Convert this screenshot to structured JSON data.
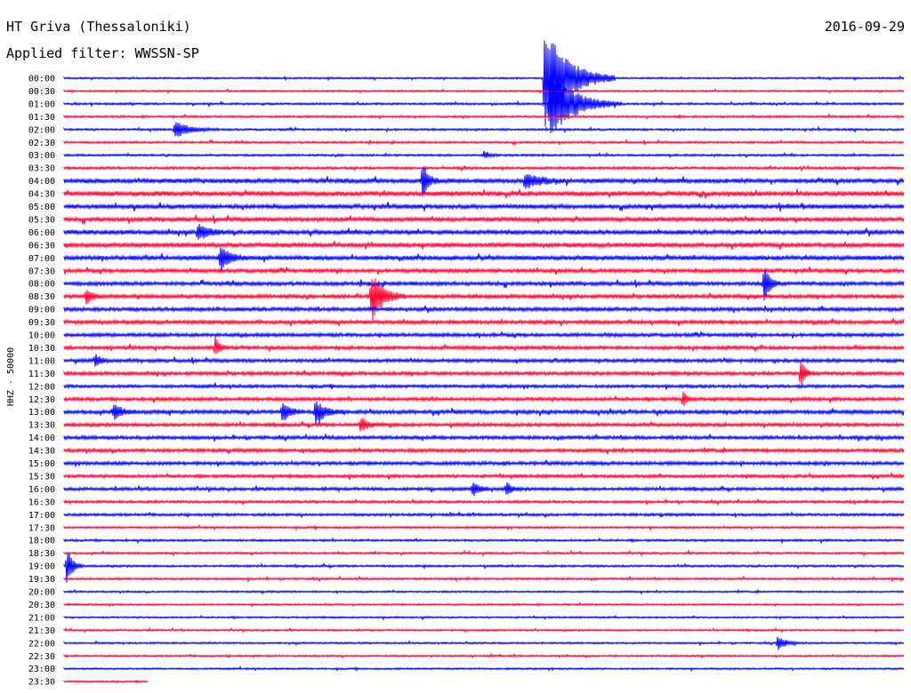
{
  "header": {
    "station": "HT Griva (Thessaloniki)",
    "date": "2016-09-29",
    "filter": "Applied filter: WWSSN-SP"
  },
  "chart_data": {
    "type": "line",
    "ylabel": "HHZ - 50000",
    "xlim_minutes": [
      0,
      30
    ],
    "ylim_rows": [
      0,
      47
    ],
    "grid": false,
    "series_colors": [
      "#0000ff",
      "#ff0033"
    ],
    "row_labels": [
      "00:00",
      "00:30",
      "01:00",
      "01:30",
      "02:00",
      "02:30",
      "03:00",
      "03:30",
      "04:00",
      "04:30",
      "05:00",
      "05:30",
      "06:00",
      "06:30",
      "07:00",
      "07:30",
      "08:00",
      "08:30",
      "09:00",
      "09:30",
      "10:00",
      "10:30",
      "11:00",
      "11:30",
      "12:00",
      "12:30",
      "13:00",
      "13:30",
      "14:00",
      "14:30",
      "15:00",
      "15:30",
      "16:00",
      "16:30",
      "17:00",
      "17:30",
      "18:00",
      "18:30",
      "19:00",
      "19:30",
      "20:00",
      "20:30",
      "21:00",
      "21:30",
      "22:00",
      "22:30",
      "23:00",
      "23:30"
    ],
    "row_noise": [
      1,
      1,
      1.2,
      1.2,
      1.2,
      1.2,
      1.2,
      1.5,
      2.5,
      2.8,
      2.5,
      2.5,
      2.5,
      2.5,
      2.5,
      2.2,
      2.2,
      2.2,
      2.2,
      2.2,
      2,
      2,
      2,
      2,
      1.8,
      2,
      2.2,
      2,
      2,
      2,
      2,
      1.8,
      1.8,
      1.5,
      1.5,
      1.2,
      1.2,
      1.2,
      1.2,
      1.2,
      1,
      1,
      1,
      1,
      1,
      1,
      1,
      1
    ],
    "row_end_minute": [
      30,
      30,
      30,
      30,
      30,
      30,
      30,
      30,
      30,
      30,
      30,
      30,
      30,
      30,
      30,
      30,
      30,
      30,
      30,
      30,
      30,
      30,
      30,
      30,
      30,
      30,
      30,
      30,
      30,
      30,
      30,
      30,
      30,
      30,
      30,
      30,
      30,
      30,
      30,
      30,
      30,
      30,
      30,
      30,
      30,
      30,
      30,
      3
    ],
    "events": [
      {
        "row": 0,
        "minute": 17.2,
        "amplitude": 60,
        "duration": 2.5
      },
      {
        "row": 2,
        "minute": 17.4,
        "amplitude": 40,
        "duration": 2.5
      },
      {
        "row": 4,
        "minute": 4.0,
        "amplitude": 9,
        "duration": 1.5
      },
      {
        "row": 6,
        "minute": 15.0,
        "amplitude": 4,
        "duration": 0.6
      },
      {
        "row": 8,
        "minute": 12.8,
        "amplitude": 22,
        "duration": 0.6
      },
      {
        "row": 8,
        "minute": 16.5,
        "amplitude": 9,
        "duration": 1.5
      },
      {
        "row": 12,
        "minute": 4.8,
        "amplitude": 10,
        "duration": 1.0
      },
      {
        "row": 14,
        "minute": 5.6,
        "amplitude": 14,
        "duration": 1.0
      },
      {
        "row": 16,
        "minute": 25.0,
        "amplitude": 22,
        "duration": 0.6
      },
      {
        "row": 17,
        "minute": 0.8,
        "amplitude": 10,
        "duration": 0.6
      },
      {
        "row": 17,
        "minute": 11.0,
        "amplitude": 28,
        "duration": 1.2
      },
      {
        "row": 21,
        "minute": 5.4,
        "amplitude": 12,
        "duration": 0.5
      },
      {
        "row": 22,
        "minute": 1.1,
        "amplitude": 8,
        "duration": 0.5
      },
      {
        "row": 23,
        "minute": 26.3,
        "amplitude": 18,
        "duration": 0.5
      },
      {
        "row": 25,
        "minute": 22.1,
        "amplitude": 10,
        "duration": 0.4
      },
      {
        "row": 26,
        "minute": 1.8,
        "amplitude": 9,
        "duration": 0.8
      },
      {
        "row": 26,
        "minute": 7.8,
        "amplitude": 12,
        "duration": 0.8
      },
      {
        "row": 26,
        "minute": 9.0,
        "amplitude": 14,
        "duration": 1.0
      },
      {
        "row": 27,
        "minute": 10.6,
        "amplitude": 8,
        "duration": 0.8
      },
      {
        "row": 32,
        "minute": 14.6,
        "amplitude": 10,
        "duration": 0.6
      },
      {
        "row": 32,
        "minute": 15.8,
        "amplitude": 8,
        "duration": 0.6
      },
      {
        "row": 38,
        "minute": 0.1,
        "amplitude": 22,
        "duration": 0.6
      },
      {
        "row": 44,
        "minute": 25.5,
        "amplitude": 8,
        "duration": 0.8
      }
    ]
  }
}
